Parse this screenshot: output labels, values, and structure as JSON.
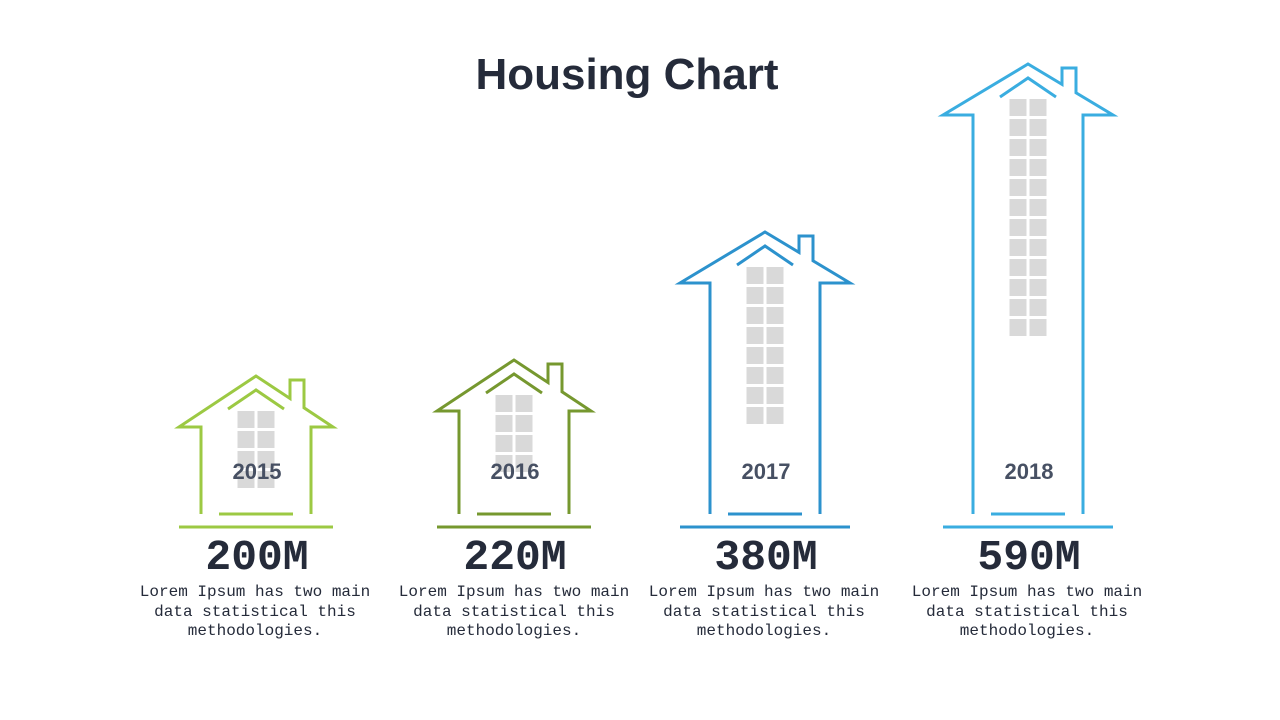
{
  "title": "Housing Chart",
  "chart_data": {
    "type": "bar",
    "categories": [
      "2015",
      "2016",
      "2017",
      "2018"
    ],
    "values": [
      200,
      220,
      380,
      590
    ],
    "value_labels": [
      "200M",
      "220M",
      "380M",
      "590M"
    ],
    "descriptions": [
      "Lorem Ipsum has two main data statistical this methodologies.",
      "Lorem Ipsum has two main data statistical this methodologies.",
      "Lorem Ipsum has two main data statistical this methodologies.",
      "Lorem Ipsum has two main data statistical this methodologies."
    ],
    "colors": [
      "#9cc943",
      "#76982f",
      "#2c92cd",
      "#3aade0"
    ],
    "window_color": "#d9d9d9"
  }
}
